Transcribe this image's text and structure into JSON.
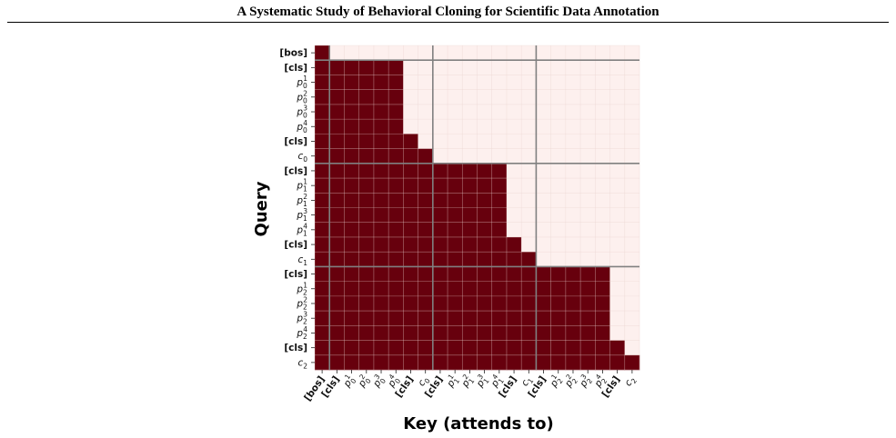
{
  "header": {
    "paper_title": "A Systematic Study of Behavioral Cloning for Scientific Data Annotation"
  },
  "chart_data": {
    "type": "heatmap",
    "title": "",
    "xlabel": "Key (attends to)",
    "ylabel": "Query",
    "grid": true,
    "colors": {
      "attend": "#67000d",
      "masked": "#fdf0ee",
      "grid_minor": "#e9d3d0",
      "grid_major": "#808080"
    },
    "tokens": [
      {
        "base": "[bos]",
        "sub": "",
        "sup": "",
        "bold": true
      },
      {
        "base": "[cls]",
        "sub": "",
        "sup": "",
        "bold": true
      },
      {
        "base": "p",
        "sub": "0",
        "sup": "1",
        "bold": false
      },
      {
        "base": "p",
        "sub": "0",
        "sup": "2",
        "bold": false
      },
      {
        "base": "p",
        "sub": "0",
        "sup": "3",
        "bold": false
      },
      {
        "base": "p",
        "sub": "0",
        "sup": "4",
        "bold": false
      },
      {
        "base": "[cls]",
        "sub": "",
        "sup": "",
        "bold": true
      },
      {
        "base": "c",
        "sub": "0",
        "sup": "",
        "bold": false
      },
      {
        "base": "[cls]",
        "sub": "",
        "sup": "",
        "bold": true
      },
      {
        "base": "p",
        "sub": "1",
        "sup": "1",
        "bold": false
      },
      {
        "base": "p",
        "sub": "1",
        "sup": "2",
        "bold": false
      },
      {
        "base": "p",
        "sub": "1",
        "sup": "3",
        "bold": false
      },
      {
        "base": "p",
        "sub": "1",
        "sup": "4",
        "bold": false
      },
      {
        "base": "[cls]",
        "sub": "",
        "sup": "",
        "bold": true
      },
      {
        "base": "c",
        "sub": "1",
        "sup": "",
        "bold": false
      },
      {
        "base": "[cls]",
        "sub": "",
        "sup": "",
        "bold": true
      },
      {
        "base": "p",
        "sub": "2",
        "sup": "1",
        "bold": false
      },
      {
        "base": "p",
        "sub": "2",
        "sup": "2",
        "bold": false
      },
      {
        "base": "p",
        "sub": "2",
        "sup": "3",
        "bold": false
      },
      {
        "base": "p",
        "sub": "2",
        "sup": "4",
        "bold": false
      },
      {
        "base": "[cls]",
        "sub": "",
        "sup": "",
        "bold": true
      },
      {
        "base": "c",
        "sub": "2",
        "sup": "",
        "bold": false
      }
    ],
    "attention_mask": [
      [
        1,
        0,
        0,
        0,
        0,
        0,
        0,
        0,
        0,
        0,
        0,
        0,
        0,
        0,
        0,
        0,
        0,
        0,
        0,
        0,
        0,
        0
      ],
      [
        1,
        1,
        1,
        1,
        1,
        1,
        0,
        0,
        0,
        0,
        0,
        0,
        0,
        0,
        0,
        0,
        0,
        0,
        0,
        0,
        0,
        0
      ],
      [
        1,
        1,
        1,
        1,
        1,
        1,
        0,
        0,
        0,
        0,
        0,
        0,
        0,
        0,
        0,
        0,
        0,
        0,
        0,
        0,
        0,
        0
      ],
      [
        1,
        1,
        1,
        1,
        1,
        1,
        0,
        0,
        0,
        0,
        0,
        0,
        0,
        0,
        0,
        0,
        0,
        0,
        0,
        0,
        0,
        0
      ],
      [
        1,
        1,
        1,
        1,
        1,
        1,
        0,
        0,
        0,
        0,
        0,
        0,
        0,
        0,
        0,
        0,
        0,
        0,
        0,
        0,
        0,
        0
      ],
      [
        1,
        1,
        1,
        1,
        1,
        1,
        0,
        0,
        0,
        0,
        0,
        0,
        0,
        0,
        0,
        0,
        0,
        0,
        0,
        0,
        0,
        0
      ],
      [
        1,
        1,
        1,
        1,
        1,
        1,
        1,
        0,
        0,
        0,
        0,
        0,
        0,
        0,
        0,
        0,
        0,
        0,
        0,
        0,
        0,
        0
      ],
      [
        1,
        1,
        1,
        1,
        1,
        1,
        1,
        1,
        0,
        0,
        0,
        0,
        0,
        0,
        0,
        0,
        0,
        0,
        0,
        0,
        0,
        0
      ],
      [
        1,
        1,
        1,
        1,
        1,
        1,
        1,
        1,
        1,
        1,
        1,
        1,
        1,
        0,
        0,
        0,
        0,
        0,
        0,
        0,
        0,
        0
      ],
      [
        1,
        1,
        1,
        1,
        1,
        1,
        1,
        1,
        1,
        1,
        1,
        1,
        1,
        0,
        0,
        0,
        0,
        0,
        0,
        0,
        0,
        0
      ],
      [
        1,
        1,
        1,
        1,
        1,
        1,
        1,
        1,
        1,
        1,
        1,
        1,
        1,
        0,
        0,
        0,
        0,
        0,
        0,
        0,
        0,
        0
      ],
      [
        1,
        1,
        1,
        1,
        1,
        1,
        1,
        1,
        1,
        1,
        1,
        1,
        1,
        0,
        0,
        0,
        0,
        0,
        0,
        0,
        0,
        0
      ],
      [
        1,
        1,
        1,
        1,
        1,
        1,
        1,
        1,
        1,
        1,
        1,
        1,
        1,
        0,
        0,
        0,
        0,
        0,
        0,
        0,
        0,
        0
      ],
      [
        1,
        1,
        1,
        1,
        1,
        1,
        1,
        1,
        1,
        1,
        1,
        1,
        1,
        1,
        0,
        0,
        0,
        0,
        0,
        0,
        0,
        0
      ],
      [
        1,
        1,
        1,
        1,
        1,
        1,
        1,
        1,
        1,
        1,
        1,
        1,
        1,
        1,
        1,
        0,
        0,
        0,
        0,
        0,
        0,
        0
      ],
      [
        1,
        1,
        1,
        1,
        1,
        1,
        1,
        1,
        1,
        1,
        1,
        1,
        1,
        1,
        1,
        1,
        1,
        1,
        1,
        1,
        0,
        0
      ],
      [
        1,
        1,
        1,
        1,
        1,
        1,
        1,
        1,
        1,
        1,
        1,
        1,
        1,
        1,
        1,
        1,
        1,
        1,
        1,
        1,
        0,
        0
      ],
      [
        1,
        1,
        1,
        1,
        1,
        1,
        1,
        1,
        1,
        1,
        1,
        1,
        1,
        1,
        1,
        1,
        1,
        1,
        1,
        1,
        0,
        0
      ],
      [
        1,
        1,
        1,
        1,
        1,
        1,
        1,
        1,
        1,
        1,
        1,
        1,
        1,
        1,
        1,
        1,
        1,
        1,
        1,
        1,
        0,
        0
      ],
      [
        1,
        1,
        1,
        1,
        1,
        1,
        1,
        1,
        1,
        1,
        1,
        1,
        1,
        1,
        1,
        1,
        1,
        1,
        1,
        1,
        0,
        0
      ],
      [
        1,
        1,
        1,
        1,
        1,
        1,
        1,
        1,
        1,
        1,
        1,
        1,
        1,
        1,
        1,
        1,
        1,
        1,
        1,
        1,
        1,
        0
      ],
      [
        1,
        1,
        1,
        1,
        1,
        1,
        1,
        1,
        1,
        1,
        1,
        1,
        1,
        1,
        1,
        1,
        1,
        1,
        1,
        1,
        1,
        1
      ]
    ],
    "block_boundaries": [
      1,
      8,
      15
    ]
  }
}
